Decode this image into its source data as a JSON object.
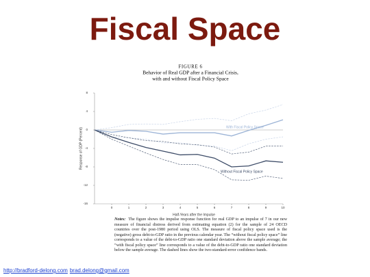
{
  "title": "Fiscal Space",
  "chart_data": {
    "type": "line",
    "figure_label": "FIGURE 6",
    "title_lines": [
      "Behavior of Real GDP after a Financial Crisis,",
      "with and without Fiscal Policy Space"
    ],
    "x_label": "Half-Years after the Impulse",
    "y_label": "Response of GDP (Percent)",
    "x": [
      -1,
      0,
      1,
      2,
      3,
      4,
      5,
      6,
      7,
      8,
      9,
      10
    ],
    "xlim": [
      -1,
      10
    ],
    "xticks": [
      0,
      1,
      2,
      3,
      4,
      5,
      6,
      7,
      8,
      9,
      10
    ],
    "ylim": [
      -16,
      8
    ],
    "yticks": [
      -16,
      -12,
      -8,
      -4,
      0,
      4,
      8
    ],
    "zero_line": true,
    "series": [
      {
        "name": "With Fiscal Policy Space",
        "color": "#9bb3d6",
        "dashed": false,
        "values": [
          0,
          -0.5,
          -0.1,
          -0.3,
          -0.9,
          -0.6,
          -0.6,
          -0.6,
          -1.3,
          -0.1,
          1.0,
          2.2
        ]
      },
      {
        "color": "#c8d4e8",
        "dashed": true,
        "values": [
          0,
          0.5,
          1.2,
          1.3,
          1.2,
          1.8,
          2.3,
          2.5,
          2.0,
          3.5,
          4.3,
          5.5
        ]
      },
      {
        "color": "#c8d4e8",
        "dashed": true,
        "values": [
          0,
          -1.5,
          -1.7,
          -2.0,
          -2.8,
          -2.8,
          -3.3,
          -3.5,
          -4.5,
          -3.0,
          -2.0,
          -1.5
        ]
      },
      {
        "name": "Without Fiscal Policy Space",
        "color": "#3b4a66",
        "dashed": false,
        "values": [
          0,
          -1.5,
          -2.7,
          -3.8,
          -4.6,
          -5.4,
          -5.3,
          -6.1,
          -8.0,
          -7.8,
          -6.7,
          -7.0
        ]
      },
      {
        "color": "#55627a",
        "dashed": true,
        "values": [
          0,
          -1.0,
          -1.7,
          -2.3,
          -2.5,
          -3.0,
          -3.2,
          -3.7,
          -5.2,
          -4.8,
          -3.5,
          -3.5
        ]
      },
      {
        "color": "#55627a",
        "dashed": true,
        "values": [
          0,
          -2.0,
          -3.5,
          -5.0,
          -6.4,
          -7.5,
          -7.5,
          -8.6,
          -10.8,
          -10.9,
          -10.0,
          -10.5
        ]
      }
    ]
  },
  "notes": {
    "label": "Notes:",
    "text": "The figure shows the impulse response function for real GDP to an impulse of 7 in our new measure of financial distress derived from estimating equation (2) for the sample of 24 OECD countries over the post-1980 period using OLS. The measure of fiscal policy space used is the (negative) gross debt-to-GDP ratio in the previous calendar year. The “without fiscal policy space” line corresponds to a value of the debt-to-GDP ratio one standard deviation above the sample average; the “with fiscal policy space” line corresponds to a value of the debt-to-GDP ratio one standard deviation below the sample average. The dashed lines show the two-standard-error confidence bands."
  },
  "footer": {
    "site": "http://bradford-delong.com",
    "email": "brad.delong@gmail.com"
  }
}
